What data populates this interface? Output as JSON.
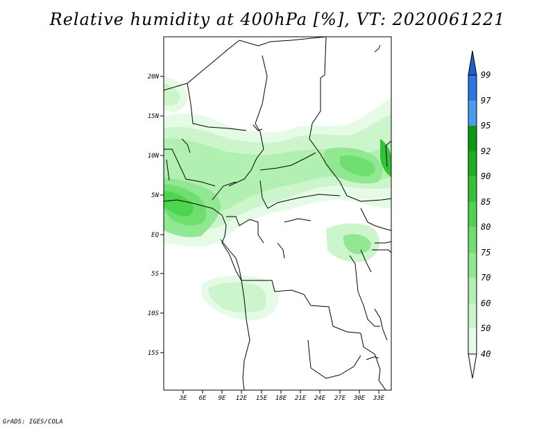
{
  "title": "Relative humidity at 400hPa [%], VT: 2020061221",
  "footer": "GrADS: IGES/COLA",
  "map": {
    "lat_labels": [
      "20N",
      "15N",
      "10N",
      "5N",
      "EQ",
      "5S",
      "10S",
      "15S"
    ],
    "lon_labels": [
      "3E",
      "6E",
      "9E",
      "12E",
      "15E",
      "18E",
      "21E",
      "24E",
      "27E",
      "30E",
      "33E"
    ]
  },
  "colorbar": {
    "levels": [
      "99",
      "97",
      "95",
      "92",
      "90",
      "85",
      "80",
      "75",
      "70",
      "60",
      "50",
      "40"
    ],
    "colors": {
      "above_99": "#1c5fce",
      "97-99": "#2a78e0",
      "95-97": "#4b9cf0",
      "92-95": "#0d9a13",
      "90-92": "#1eae1e",
      "85-90": "#36c236",
      "80-85": "#4fd44f",
      "75-80": "#6fdf6f",
      "70-75": "#92e892",
      "60-70": "#b2f0b2",
      "50-60": "#ccf5cc",
      "40-50": "#e6fbe6",
      "below_40": "#ffffff"
    }
  }
}
